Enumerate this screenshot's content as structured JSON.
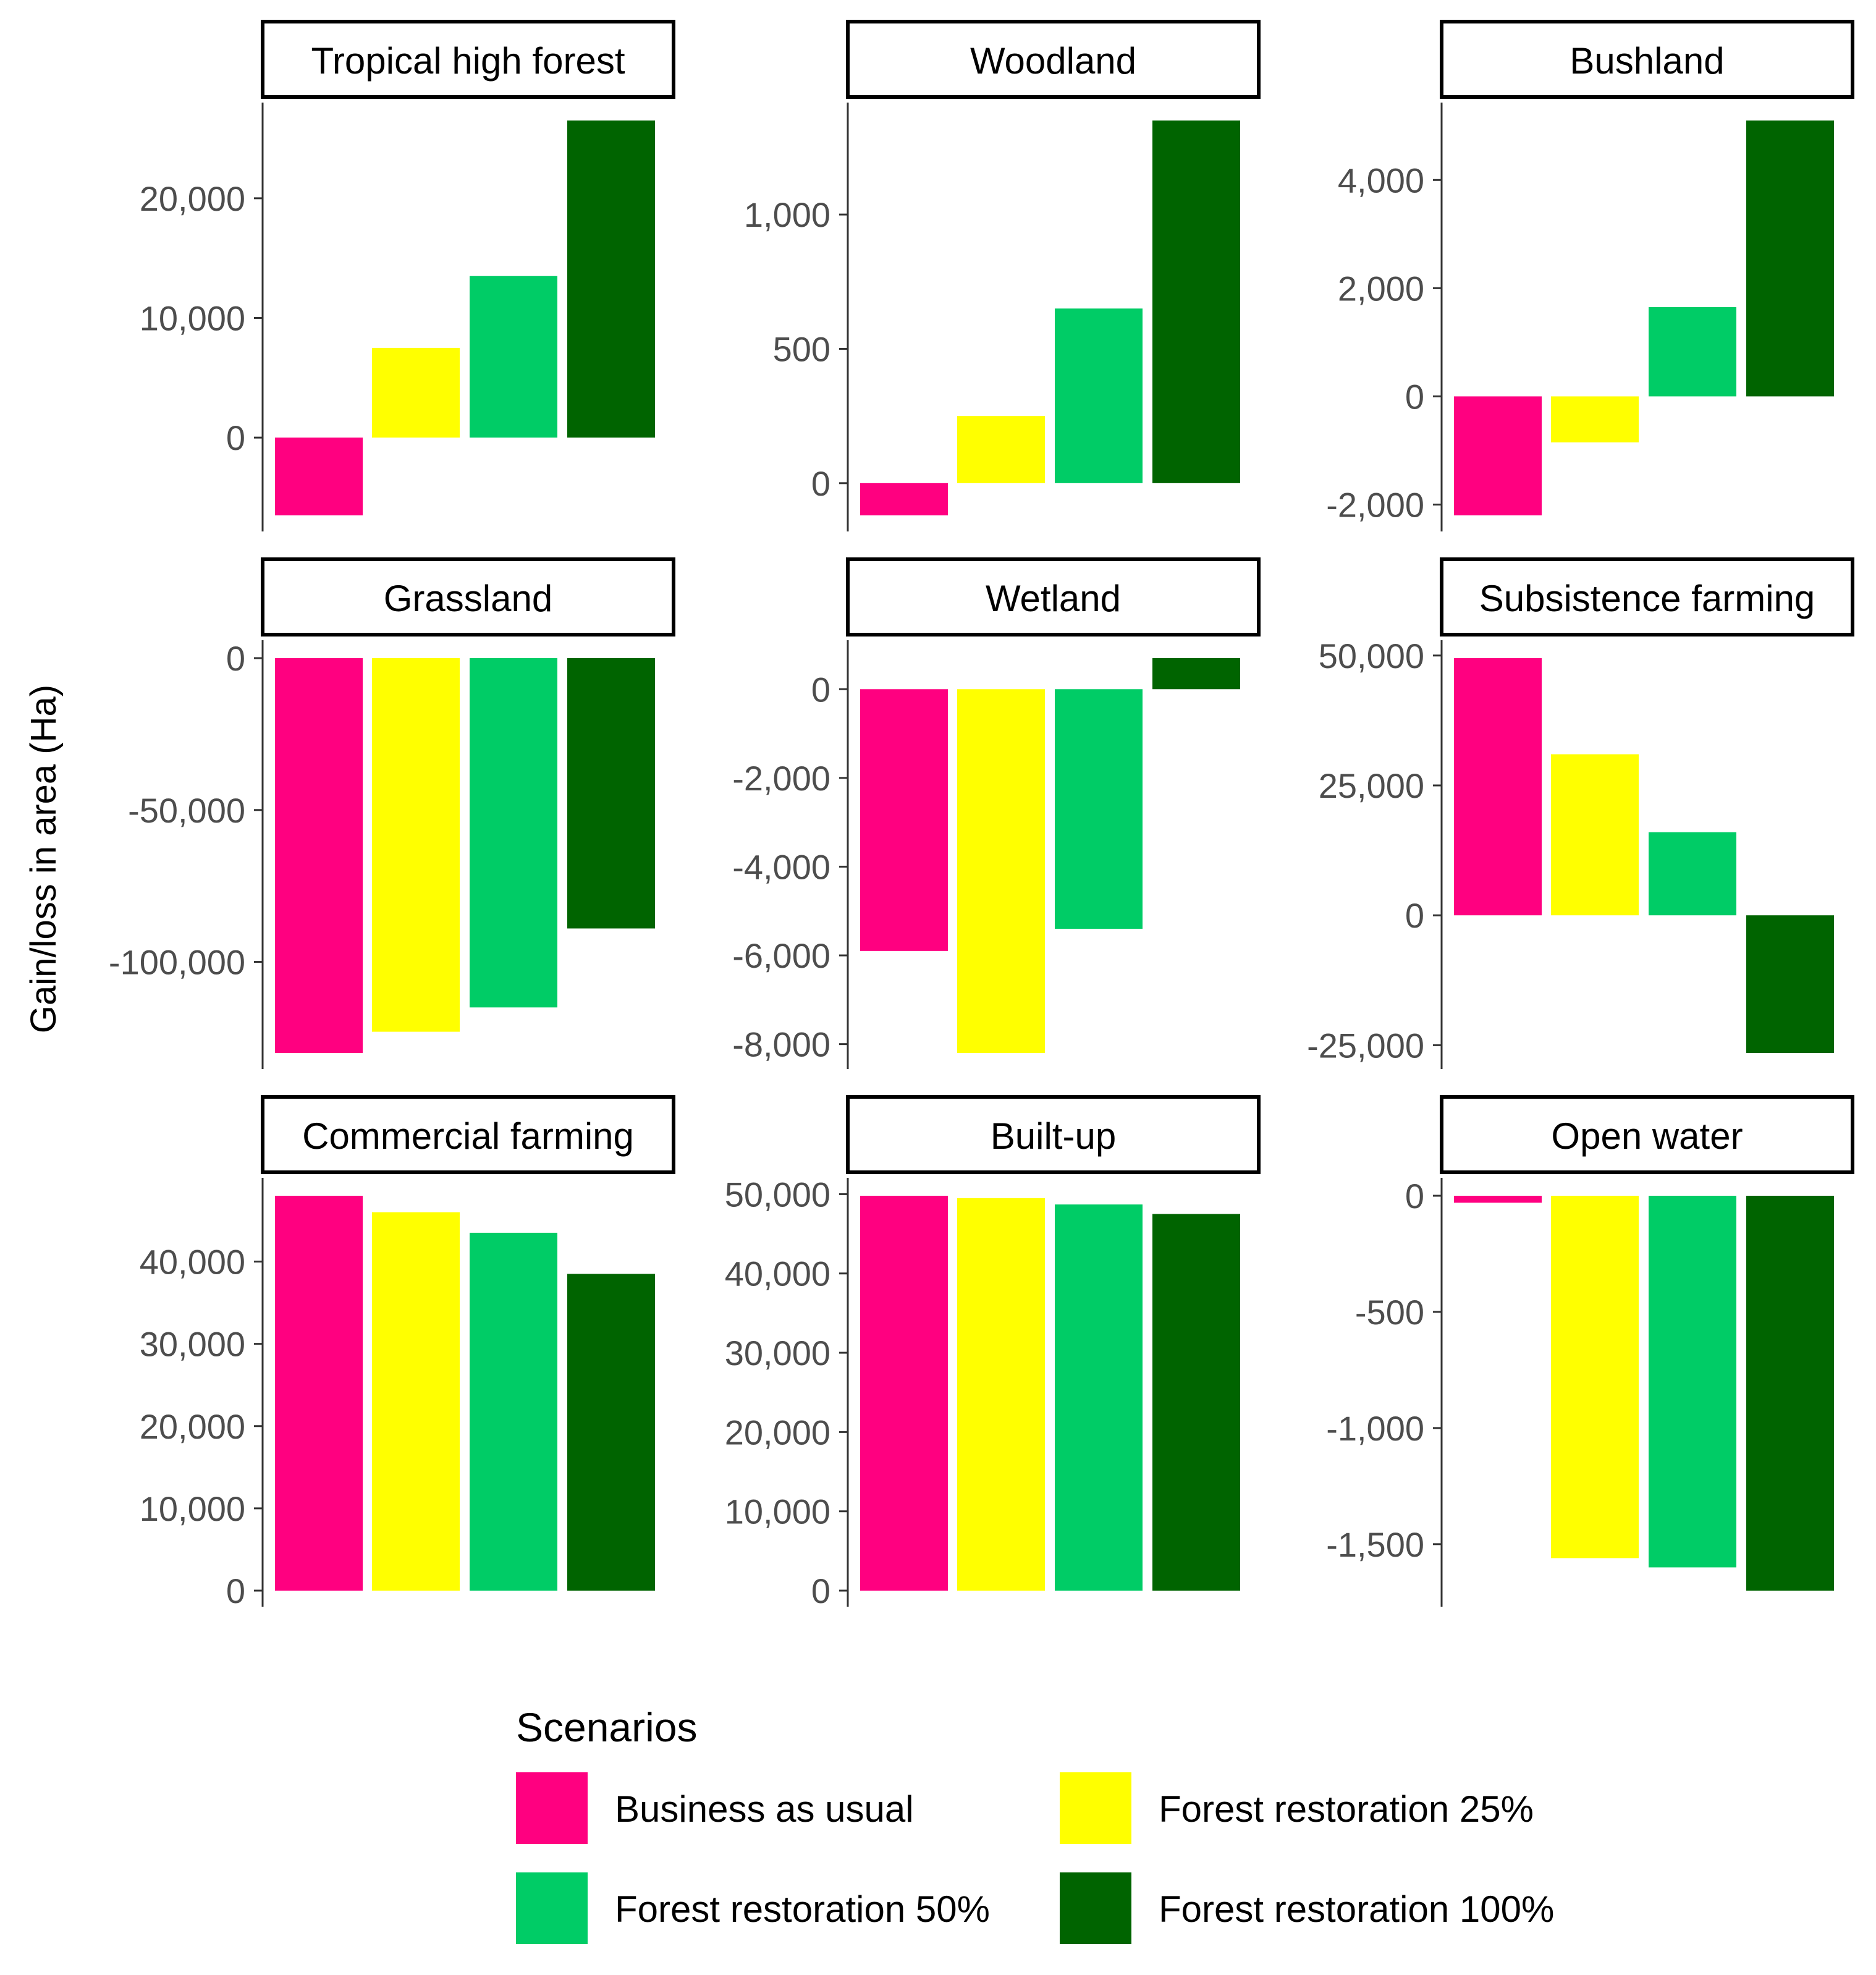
{
  "ylabel": "Gain/loss in area (Ha)",
  "legend": {
    "title": "Scenarios",
    "placement": "bottom",
    "items": [
      {
        "label": "Business as usual",
        "color": "#FF0080"
      },
      {
        "label": "Forest restoration 25%",
        "color": "#FFFF00"
      },
      {
        "label": "Forest restoration 50%",
        "color": "#00CC66"
      },
      {
        "label": "Forest restoration 100%",
        "color": "#006400"
      }
    ]
  },
  "chart_data": [
    {
      "type": "bar",
      "title": "Tropical high forest",
      "series_values": [
        -6500,
        7500,
        13500,
        26500
      ],
      "ylim": [
        -6500,
        26500
      ],
      "ticks": [
        0,
        10000,
        20000
      ],
      "tick_labels": [
        "0",
        "10,000",
        "20,000"
      ]
    },
    {
      "type": "bar",
      "title": "Woodland",
      "series_values": [
        -120,
        250,
        650,
        1350
      ],
      "ylim": [
        -120,
        1350
      ],
      "ticks": [
        0,
        500,
        1000
      ],
      "tick_labels": [
        "0",
        "500",
        "1,000"
      ]
    },
    {
      "type": "bar",
      "title": "Bushland",
      "series_values": [
        -2200,
        -850,
        1650,
        5100
      ],
      "ylim": [
        -2200,
        5100
      ],
      "ticks": [
        -2000,
        0,
        2000,
        4000
      ],
      "tick_labels": [
        "-2,000",
        "0",
        "2,000",
        "4,000"
      ]
    },
    {
      "type": "bar",
      "title": "Grassland",
      "series_values": [
        -130000,
        -123000,
        -115000,
        -89000
      ],
      "ylim": [
        -130000,
        0
      ],
      "ticks": [
        -100000,
        -50000,
        0
      ],
      "tick_labels": [
        "-100,000",
        "-50,000",
        "0"
      ]
    },
    {
      "type": "bar",
      "title": "Wetland",
      "series_values": [
        -5900,
        -8200,
        -5400,
        700
      ],
      "ylim": [
        -8200,
        700
      ],
      "ticks": [
        -8000,
        -6000,
        -4000,
        -2000,
        0
      ],
      "tick_labels": [
        "-8,000",
        "-6,000",
        "-4,000",
        "-2,000",
        "0"
      ]
    },
    {
      "type": "bar",
      "title": "Subsistence farming",
      "series_values": [
        49500,
        31000,
        16000,
        -26500
      ],
      "ylim": [
        -26500,
        49500
      ],
      "ticks": [
        -25000,
        0,
        25000,
        50000
      ],
      "tick_labels": [
        "-25,000",
        "0",
        "25,000",
        "50,000"
      ]
    },
    {
      "type": "bar",
      "title": "Commercial farming",
      "series_values": [
        48000,
        46000,
        43500,
        38500
      ],
      "ylim": [
        0,
        48000
      ],
      "ticks": [
        0,
        10000,
        20000,
        30000,
        40000
      ],
      "tick_labels": [
        "0",
        "10,000",
        "20,000",
        "30,000",
        "40,000"
      ]
    },
    {
      "type": "bar",
      "title": "Built-up",
      "series_values": [
        49800,
        49500,
        48700,
        47500
      ],
      "ylim": [
        0,
        49800
      ],
      "ticks": [
        0,
        10000,
        20000,
        30000,
        40000,
        50000
      ],
      "tick_labels": [
        "0",
        "10,000",
        "20,000",
        "30,000",
        "40,000",
        "50,000"
      ]
    },
    {
      "type": "bar",
      "title": "Open water",
      "series_values": [
        -30,
        -1560,
        -1600,
        -1700
      ],
      "ylim": [
        -1700,
        0
      ],
      "ticks": [
        -1500,
        -1000,
        -500,
        0
      ],
      "tick_labels": [
        "-1,500",
        "-1,000",
        "-500",
        "0"
      ]
    }
  ]
}
